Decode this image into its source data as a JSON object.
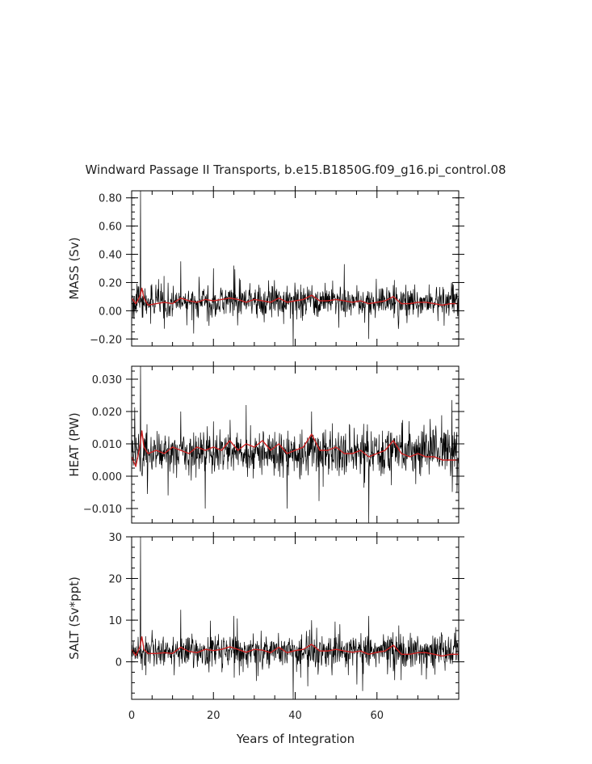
{
  "title": "Windward Passage II Transports, b.e15.B1850G.f09_g16.pi_control.08",
  "xlabel": "Years of Integration",
  "colors": {
    "raw": "#000000",
    "smoothed": "#cc2222"
  },
  "chart_data": [
    {
      "type": "line",
      "name": "mass",
      "ylabel": "MASS (Sv)",
      "xlim": [
        0,
        80
      ],
      "ylim": [
        -0.25,
        0.85
      ],
      "xticks": [
        "0",
        "20",
        "40",
        "60"
      ],
      "yticks": [
        {
          "value": -0.2,
          "label": "−0.20"
        },
        {
          "value": 0.0,
          "label": "0.00"
        },
        {
          "value": 0.2,
          "label": "0.20"
        },
        {
          "value": 0.4,
          "label": "0.40"
        },
        {
          "value": 0.6,
          "label": "0.60"
        },
        {
          "value": 0.8,
          "label": "0.80"
        }
      ],
      "series": [
        {
          "role": "raw",
          "mean": 0.065,
          "noise": 0.055,
          "spikes": [
            [
              2.2,
              0.85
            ],
            [
              2.6,
              -0.05
            ],
            [
              12.0,
              0.35
            ],
            [
              25.0,
              0.32
            ],
            [
              39.5,
              -0.28
            ],
            [
              52.0,
              0.33
            ],
            [
              58.0,
              -0.2
            ]
          ]
        },
        {
          "role": "smoothed",
          "points": [
            [
              0,
              0.09
            ],
            [
              1,
              0.05
            ],
            [
              2,
              0.1
            ],
            [
              2.5,
              0.16
            ],
            [
              3,
              0.09
            ],
            [
              4,
              0.04
            ],
            [
              6,
              0.05
            ],
            [
              8,
              0.06
            ],
            [
              10,
              0.05
            ],
            [
              12,
              0.09
            ],
            [
              14,
              0.07
            ],
            [
              16,
              0.06
            ],
            [
              18,
              0.08
            ],
            [
              20,
              0.07
            ],
            [
              22,
              0.08
            ],
            [
              24,
              0.09
            ],
            [
              26,
              0.08
            ],
            [
              28,
              0.06
            ],
            [
              30,
              0.08
            ],
            [
              32,
              0.07
            ],
            [
              34,
              0.06
            ],
            [
              36,
              0.09
            ],
            [
              38,
              0.06
            ],
            [
              40,
              0.07
            ],
            [
              42,
              0.08
            ],
            [
              44,
              0.11
            ],
            [
              46,
              0.07
            ],
            [
              48,
              0.07
            ],
            [
              50,
              0.08
            ],
            [
              52,
              0.07
            ],
            [
              54,
              0.06
            ],
            [
              56,
              0.07
            ],
            [
              58,
              0.05
            ],
            [
              60,
              0.06
            ],
            [
              62,
              0.07
            ],
            [
              64,
              0.1
            ],
            [
              66,
              0.05
            ],
            [
              68,
              0.05
            ],
            [
              70,
              0.06
            ],
            [
              72,
              0.06
            ],
            [
              74,
              0.05
            ],
            [
              76,
              0.04
            ],
            [
              78,
              0.05
            ],
            [
              80,
              0.05
            ]
          ]
        }
      ]
    },
    {
      "type": "line",
      "name": "heat",
      "ylabel": "HEAT (PW)",
      "xlim": [
        0,
        80
      ],
      "ylim": [
        -0.0145,
        0.034
      ],
      "xticks": [
        "0",
        "20",
        "40",
        "60"
      ],
      "yticks": [
        {
          "value": -0.01,
          "label": "−0.010"
        },
        {
          "value": 0.0,
          "label": "0.000"
        },
        {
          "value": 0.01,
          "label": "0.010"
        },
        {
          "value": 0.02,
          "label": "0.020"
        },
        {
          "value": 0.03,
          "label": "0.030"
        }
      ],
      "series": [
        {
          "role": "raw",
          "mean": 0.0075,
          "noise": 0.0035,
          "spikes": [
            [
              2.2,
              0.034
            ],
            [
              2.6,
              0.0
            ],
            [
              12.0,
              0.02
            ],
            [
              18.0,
              -0.01
            ],
            [
              28.0,
              0.022
            ],
            [
              38.0,
              -0.01
            ],
            [
              44.0,
              0.02
            ],
            [
              58.0,
              -0.0145
            ]
          ]
        },
        {
          "role": "smoothed",
          "points": [
            [
              0,
              0.006
            ],
            [
              1,
              0.003
            ],
            [
              2,
              0.009
            ],
            [
              2.5,
              0.014
            ],
            [
              3,
              0.009
            ],
            [
              4,
              0.007
            ],
            [
              6,
              0.008
            ],
            [
              8,
              0.007
            ],
            [
              10,
              0.009
            ],
            [
              12,
              0.008
            ],
            [
              14,
              0.007
            ],
            [
              16,
              0.009
            ],
            [
              18,
              0.008
            ],
            [
              20,
              0.009
            ],
            [
              22,
              0.008
            ],
            [
              24,
              0.011
            ],
            [
              26,
              0.008
            ],
            [
              28,
              0.01
            ],
            [
              30,
              0.009
            ],
            [
              32,
              0.011
            ],
            [
              34,
              0.008
            ],
            [
              36,
              0.01
            ],
            [
              38,
              0.007
            ],
            [
              40,
              0.008
            ],
            [
              42,
              0.009
            ],
            [
              44,
              0.013
            ],
            [
              46,
              0.008
            ],
            [
              48,
              0.008
            ],
            [
              50,
              0.009
            ],
            [
              52,
              0.007
            ],
            [
              54,
              0.007
            ],
            [
              56,
              0.008
            ],
            [
              58,
              0.006
            ],
            [
              60,
              0.007
            ],
            [
              62,
              0.008
            ],
            [
              64,
              0.011
            ],
            [
              66,
              0.007
            ],
            [
              68,
              0.006
            ],
            [
              70,
              0.007
            ],
            [
              72,
              0.006
            ],
            [
              74,
              0.006
            ],
            [
              76,
              0.005
            ],
            [
              78,
              0.005
            ],
            [
              80,
              0.005
            ]
          ]
        }
      ]
    },
    {
      "type": "line",
      "name": "salt",
      "ylabel": "SALT (Sv*ppt)",
      "xlim": [
        0,
        80
      ],
      "ylim": [
        -9,
        30
      ],
      "xticks": [
        "0",
        "20",
        "40",
        "60"
      ],
      "yticks": [
        {
          "value": 0,
          "label": "0"
        },
        {
          "value": 10,
          "label": "10"
        },
        {
          "value": 20,
          "label": "20"
        },
        {
          "value": 30,
          "label": "30"
        }
      ],
      "series": [
        {
          "role": "raw",
          "mean": 2.5,
          "noise": 2.0,
          "spikes": [
            [
              2.2,
              30.0
            ],
            [
              2.6,
              -2.0
            ],
            [
              12.0,
              12.5
            ],
            [
              25.0,
              11.0
            ],
            [
              39.5,
              -9.0
            ],
            [
              44.0,
              10.0
            ],
            [
              56.5,
              -7.0
            ],
            [
              58.0,
              11.0
            ]
          ]
        },
        {
          "role": "smoothed",
          "points": [
            [
              0,
              3.0
            ],
            [
              1,
              1.5
            ],
            [
              2,
              3.5
            ],
            [
              2.5,
              6.0
            ],
            [
              3,
              3.0
            ],
            [
              4,
              2.0
            ],
            [
              6,
              2.0
            ],
            [
              8,
              2.2
            ],
            [
              10,
              2.0
            ],
            [
              12,
              3.5
            ],
            [
              14,
              2.5
            ],
            [
              16,
              2.2
            ],
            [
              18,
              3.0
            ],
            [
              20,
              2.7
            ],
            [
              22,
              3.0
            ],
            [
              24,
              3.6
            ],
            [
              26,
              3.0
            ],
            [
              28,
              2.3
            ],
            [
              30,
              3.0
            ],
            [
              32,
              2.8
            ],
            [
              34,
              2.2
            ],
            [
              36,
              3.5
            ],
            [
              38,
              2.2
            ],
            [
              40,
              2.7
            ],
            [
              42,
              3.0
            ],
            [
              44,
              4.2
            ],
            [
              46,
              2.6
            ],
            [
              48,
              2.6
            ],
            [
              50,
              3.0
            ],
            [
              52,
              2.6
            ],
            [
              54,
              2.3
            ],
            [
              56,
              2.6
            ],
            [
              58,
              1.8
            ],
            [
              60,
              2.3
            ],
            [
              62,
              2.6
            ],
            [
              64,
              4.0
            ],
            [
              66,
              1.8
            ],
            [
              68,
              1.8
            ],
            [
              70,
              2.2
            ],
            [
              72,
              2.2
            ],
            [
              74,
              1.8
            ],
            [
              76,
              1.4
            ],
            [
              78,
              1.8
            ],
            [
              80,
              1.8
            ]
          ]
        }
      ]
    }
  ]
}
